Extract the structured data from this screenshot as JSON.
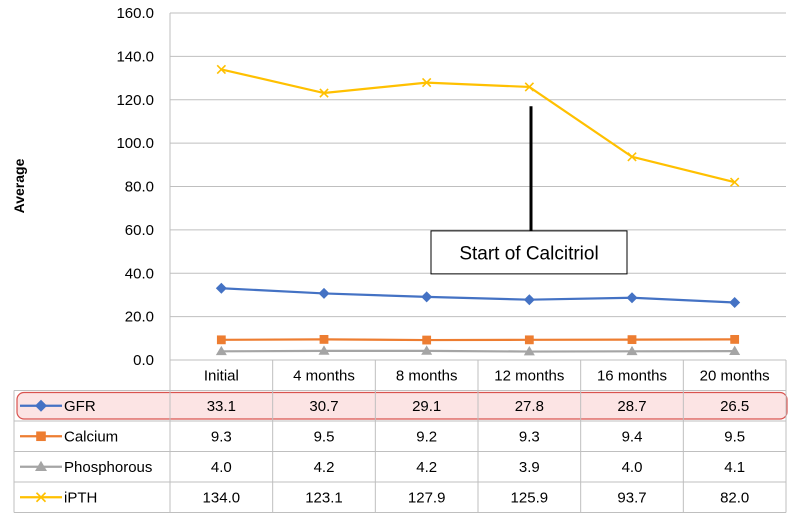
{
  "chart_data": {
    "type": "line",
    "ylabel": "Average",
    "ylim": [
      0,
      160
    ],
    "yticks": [
      "0.0",
      "20.0",
      "40.0",
      "60.0",
      "80.0",
      "100.0",
      "120.0",
      "140.0",
      "160.0"
    ],
    "categories": [
      "Initial",
      "4 months",
      "8 months",
      "12 months",
      "16 months",
      "20 months"
    ],
    "series": [
      {
        "name": "GFR",
        "marker": "diamond",
        "color": "#4472C4",
        "values": [
          33.1,
          30.7,
          29.1,
          27.8,
          28.7,
          26.5
        ],
        "labels": [
          "33.1",
          "30.7",
          "29.1",
          "27.8",
          "28.7",
          "26.5"
        ],
        "highlighted": true
      },
      {
        "name": "Calcium",
        "marker": "square",
        "color": "#ED7D31",
        "values": [
          9.3,
          9.5,
          9.2,
          9.3,
          9.4,
          9.5
        ],
        "labels": [
          "9.3",
          "9.5",
          "9.2",
          "9.3",
          "9.4",
          "9.5"
        ]
      },
      {
        "name": "Phosphorous",
        "marker": "triangle",
        "color": "#A5A5A5",
        "values": [
          4.0,
          4.2,
          4.2,
          3.9,
          4.0,
          4.1
        ],
        "labels": [
          "4.0",
          "4.2",
          "4.2",
          "3.9",
          "4.0",
          "4.1"
        ]
      },
      {
        "name": "iPTH",
        "marker": "x",
        "color": "#FFC000",
        "values": [
          134.0,
          123.1,
          127.9,
          125.9,
          93.7,
          82.0
        ],
        "labels": [
          "134.0",
          "123.1",
          "127.9",
          "125.9",
          "93.7",
          "82.0"
        ]
      }
    ],
    "annotation": {
      "text": "Start of Calcitriol",
      "arrow_from_value": 117,
      "arrow_to_value": 60,
      "between_categories": [
        "8 months",
        "12 months"
      ]
    },
    "highlight_color": "#FCE4E4",
    "highlight_border": "#D9534F"
  }
}
